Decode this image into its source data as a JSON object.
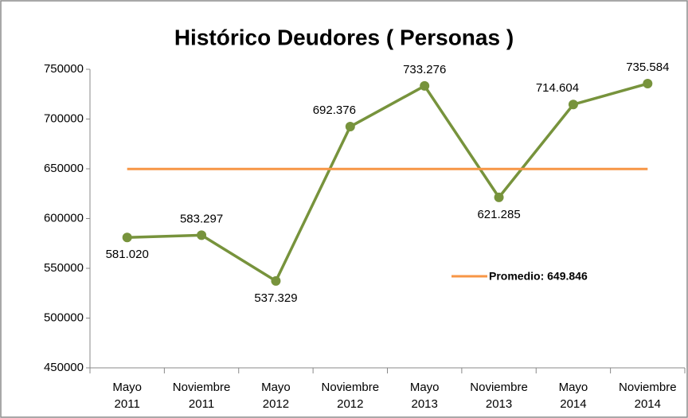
{
  "chart_data": {
    "type": "line",
    "title": "Histórico Deudores ( Personas )",
    "categories": [
      "Mayo 2011",
      "Noviembre 2011",
      "Mayo 2012",
      "Noviembre 2012",
      "Mayo 2013",
      "Noviembre 2013",
      "Mayo 2014",
      "Noviembre 2014"
    ],
    "series": [
      {
        "name": null,
        "color": "#77933c",
        "values": [
          581020,
          583297,
          537329,
          692376,
          733276,
          621285,
          714604,
          735584
        ],
        "value_labels": [
          "581.020",
          "583.297",
          "537.329",
          "692.376",
          "733.276",
          "621.285",
          "714.604",
          "735.584"
        ]
      },
      {
        "name": "Promedio: 649.846",
        "color": "#f79646",
        "values": [
          649846,
          649846,
          649846,
          649846,
          649846,
          649846,
          649846,
          649846
        ]
      }
    ],
    "ylim": [
      450000,
      750000
    ],
    "yticks": [
      450000,
      500000,
      550000,
      600000,
      650000,
      700000,
      750000
    ],
    "grid": false
  }
}
